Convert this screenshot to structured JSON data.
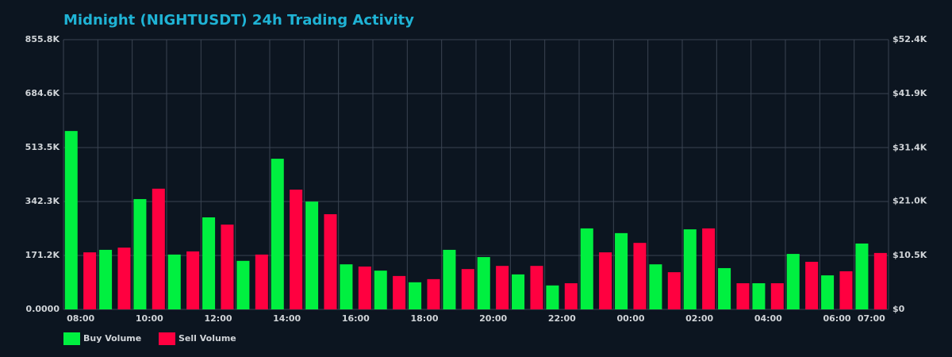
{
  "chart_data": {
    "type": "bar",
    "title": "Midnight (NIGHTUSDT) 24h Trading Activity",
    "categories": [
      "08:00",
      null,
      "10:00",
      null,
      "12:00",
      null,
      "14:00",
      null,
      "16:00",
      null,
      "18:00",
      null,
      "20:00",
      null,
      "22:00",
      null,
      "00:00",
      null,
      "02:00",
      null,
      "04:00",
      null,
      "06:00",
      "07:00"
    ],
    "series": [
      {
        "name": "Buy Volume",
        "color": "#00f040",
        "values": [
          566000,
          189000,
          350000,
          174000,
          292000,
          154000,
          478000,
          342000,
          143000,
          123000,
          86000,
          189000,
          166000,
          111000,
          76000,
          257000,
          242000,
          143000,
          254000,
          131000,
          83000,
          176000,
          108000,
          209000
        ]
      },
      {
        "name": "Sell Volume",
        "color": "#ff0040",
        "values": [
          181000,
          196000,
          383000,
          184000,
          269000,
          174000,
          380000,
          302000,
          136000,
          106000,
          96000,
          128000,
          138000,
          138000,
          83000,
          181000,
          211000,
          118000,
          257000,
          83000,
          83000,
          151000,
          121000,
          179000
        ]
      }
    ],
    "ylim": [
      0,
      855800
    ],
    "yticks": [
      {
        "value": 0,
        "label": "0.0000"
      },
      {
        "value": 171200,
        "label": "171.2K"
      },
      {
        "value": 342300,
        "label": "342.3K"
      },
      {
        "value": 513500,
        "label": "513.5K"
      },
      {
        "value": 684600,
        "label": "684.6K"
      },
      {
        "value": 855800,
        "label": "855.8K"
      }
    ],
    "y2lim": [
      0,
      52400
    ],
    "y2ticks": [
      {
        "value": 0,
        "label": "$0"
      },
      {
        "value": 10500,
        "label": "$10.5K"
      },
      {
        "value": 21000,
        "label": "$21.0K"
      },
      {
        "value": 31400,
        "label": "$31.4K"
      },
      {
        "value": 41900,
        "label": "$41.9K"
      },
      {
        "value": 52400,
        "label": "$52.4K"
      }
    ],
    "grid": true
  }
}
